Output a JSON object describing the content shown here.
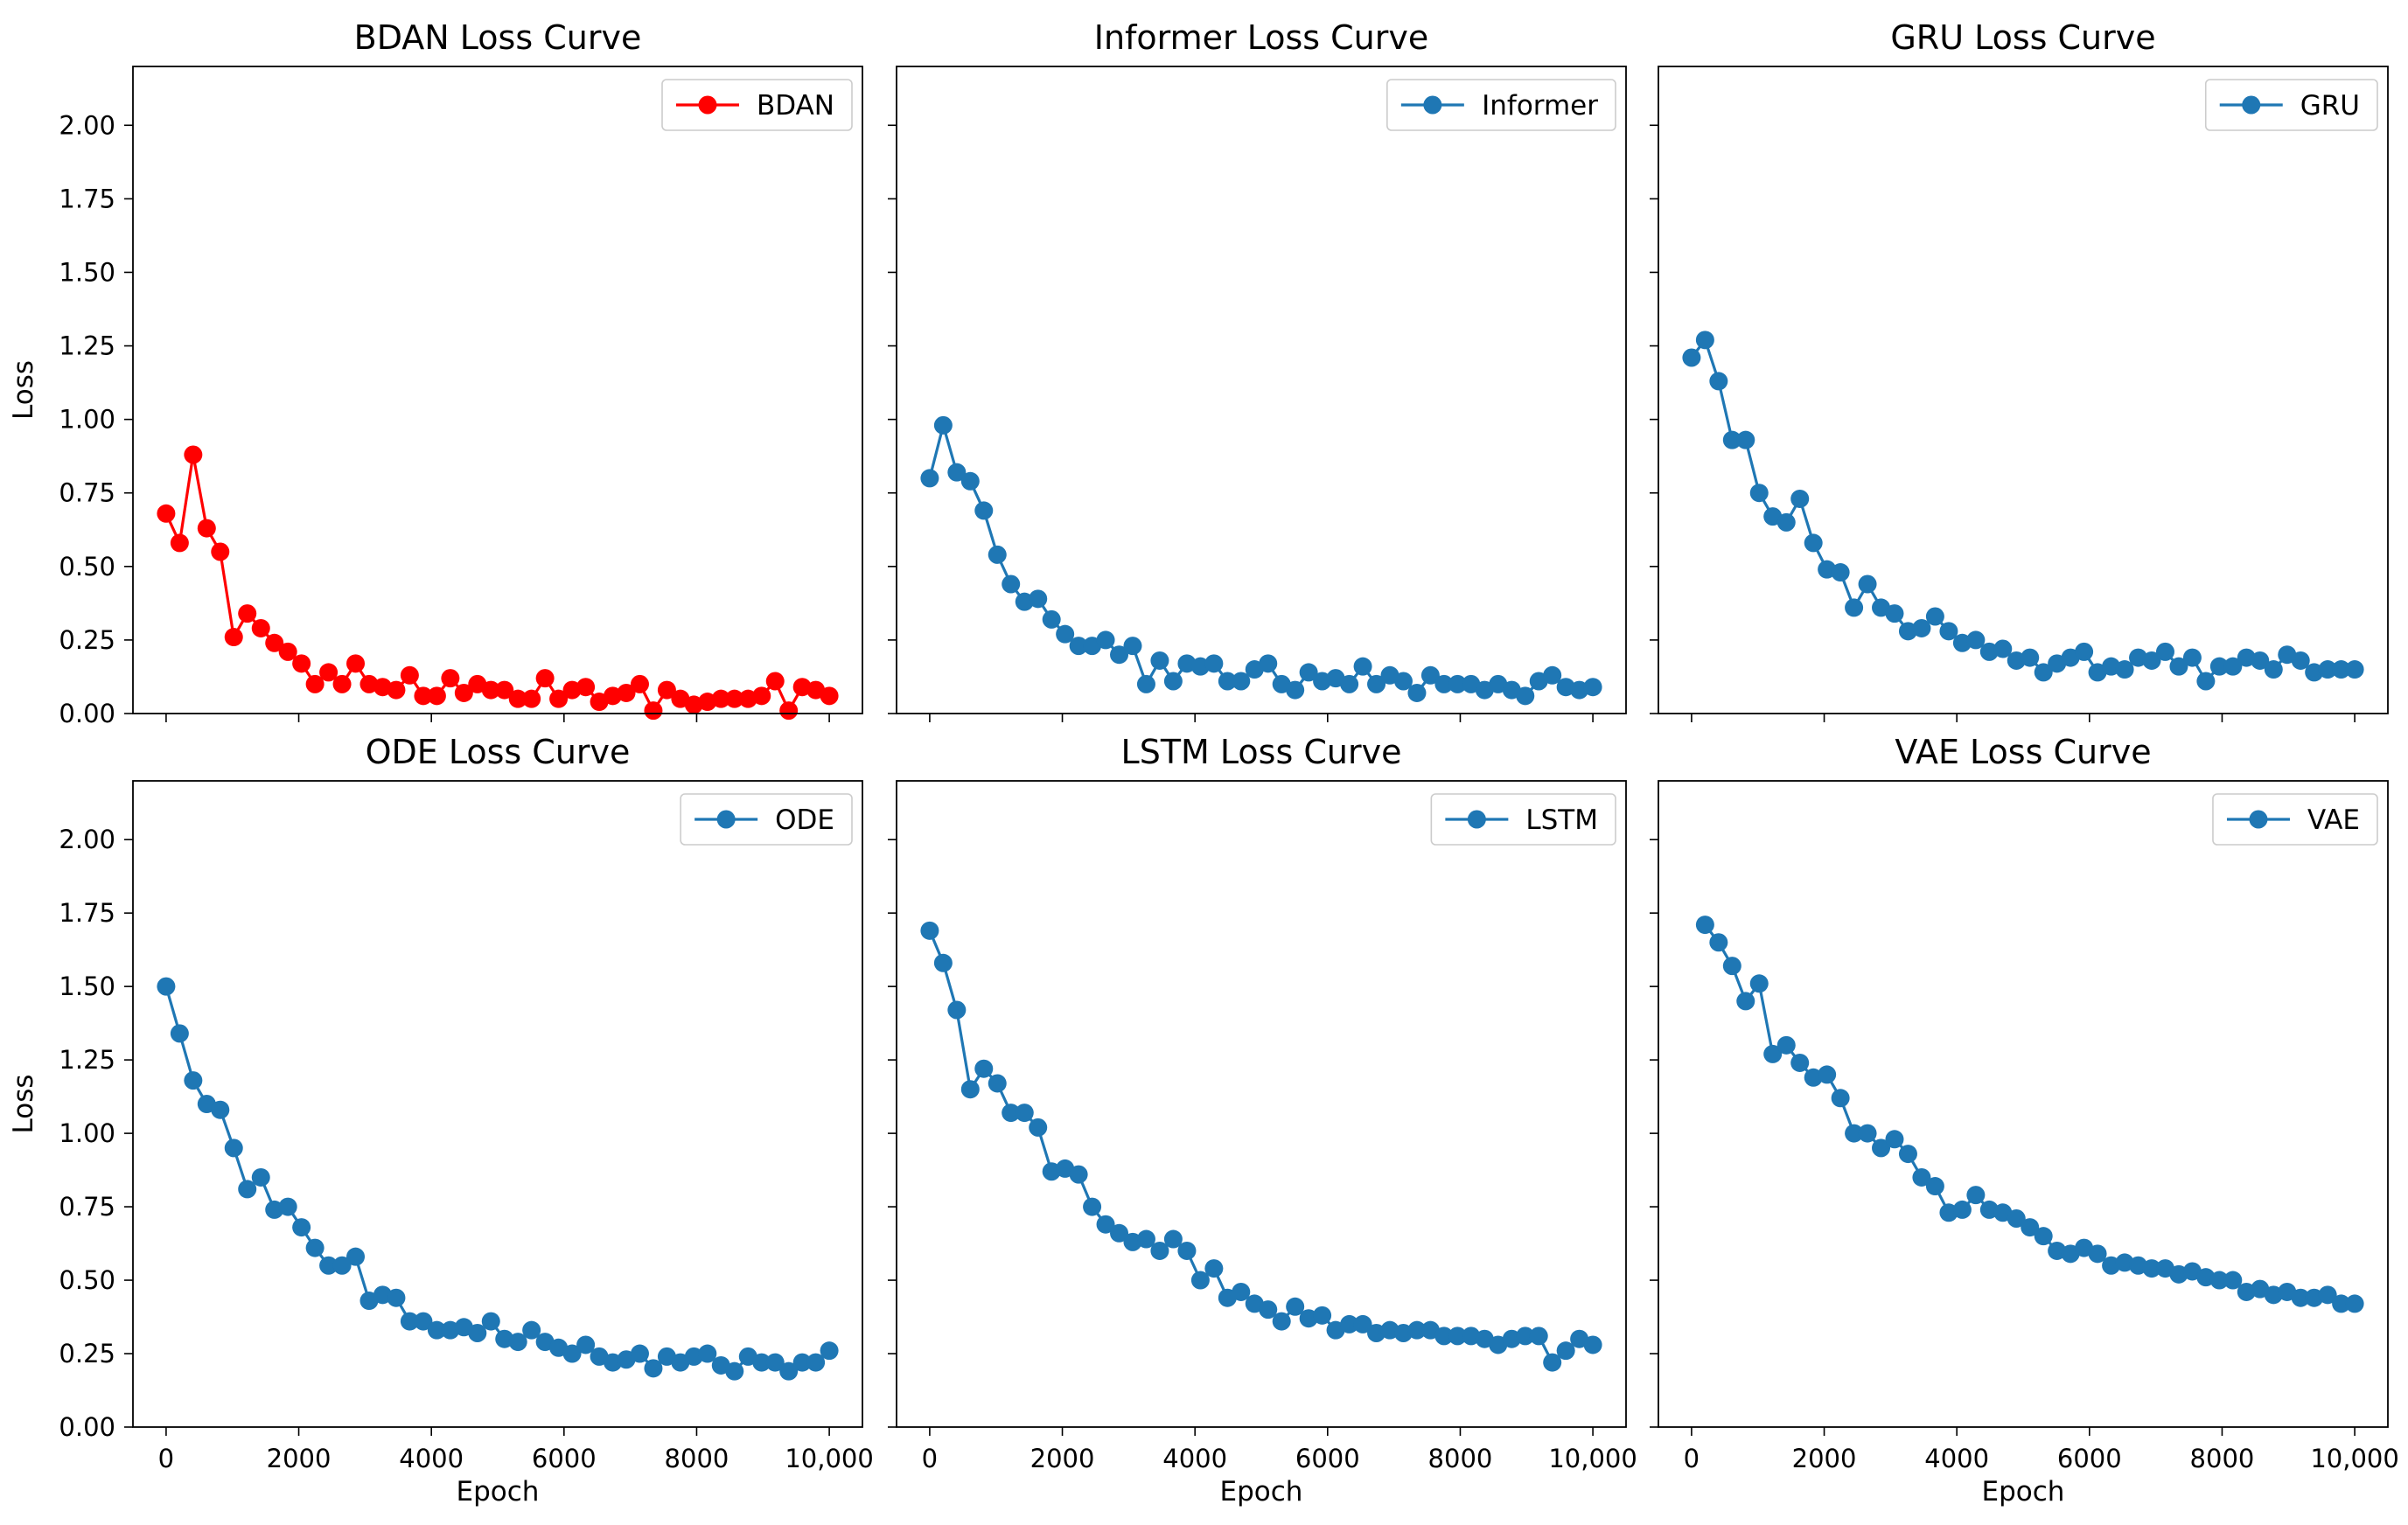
{
  "chart_data": [
    {
      "type": "line",
      "title": "BDAN Loss Curve",
      "xlabel": "",
      "ylabel": "Loss",
      "xlim": [
        -500,
        10500
      ],
      "ylim": [
        0,
        2.2
      ],
      "xticks": [
        0,
        2000,
        4000,
        6000,
        8000,
        10000
      ],
      "xtick_labels": [
        "0",
        "2000",
        "4000",
        "6000",
        "8000",
        "10,000"
      ],
      "yticks": [
        0.0,
        0.25,
        0.5,
        0.75,
        1.0,
        1.25,
        1.5,
        1.75,
        2.0
      ],
      "ytick_labels": [
        "0.00",
        "0.25",
        "0.50",
        "0.75",
        "1.00",
        "1.25",
        "1.50",
        "1.75",
        "2.00"
      ],
      "show_xticklabels": false,
      "show_yticklabels": true,
      "legend": "top-right",
      "series": [
        {
          "name": "BDAN",
          "color": "#ff0000",
          "x": [
            0,
            204,
            408,
            612,
            816,
            1020,
            1224,
            1429,
            1633,
            1837,
            2041,
            2245,
            2449,
            2653,
            2857,
            3061,
            3265,
            3469,
            3673,
            3878,
            4082,
            4286,
            4490,
            4694,
            4898,
            5102,
            5306,
            5510,
            5714,
            5918,
            6122,
            6327,
            6531,
            6735,
            6939,
            7143,
            7347,
            7551,
            7755,
            7959,
            8163,
            8367,
            8571,
            8776,
            8980,
            9184,
            9388,
            9592,
            9796,
            10000
          ],
          "values": [
            0.68,
            0.58,
            0.88,
            0.63,
            0.55,
            0.26,
            0.34,
            0.29,
            0.24,
            0.21,
            0.17,
            0.1,
            0.14,
            0.1,
            0.17,
            0.1,
            0.09,
            0.08,
            0.13,
            0.06,
            0.06,
            0.12,
            0.07,
            0.1,
            0.08,
            0.08,
            0.05,
            0.05,
            0.12,
            0.05,
            0.08,
            0.09,
            0.04,
            0.06,
            0.07,
            0.1,
            0.01,
            0.08,
            0.05,
            0.03,
            0.04,
            0.05,
            0.05,
            0.05,
            0.06,
            0.11,
            0.01,
            0.09,
            0.08,
            0.06
          ]
        }
      ]
    },
    {
      "type": "line",
      "title": "Informer Loss Curve",
      "xlabel": "",
      "ylabel": "",
      "xlim": [
        -500,
        10500
      ],
      "ylim": [
        0,
        2.2
      ],
      "xticks": [
        0,
        2000,
        4000,
        6000,
        8000,
        10000
      ],
      "xtick_labels": [
        "0",
        "2000",
        "4000",
        "6000",
        "8000",
        "10,000"
      ],
      "yticks": [
        0.0,
        0.25,
        0.5,
        0.75,
        1.0,
        1.25,
        1.5,
        1.75,
        2.0
      ],
      "ytick_labels": [
        "0.00",
        "0.25",
        "0.50",
        "0.75",
        "1.00",
        "1.25",
        "1.50",
        "1.75",
        "2.00"
      ],
      "show_xticklabels": false,
      "show_yticklabels": false,
      "legend": "top-right",
      "series": [
        {
          "name": "Informer",
          "color": "#1f77b4",
          "x": [
            0,
            204,
            408,
            612,
            816,
            1020,
            1224,
            1429,
            1633,
            1837,
            2041,
            2245,
            2449,
            2653,
            2857,
            3061,
            3265,
            3469,
            3673,
            3878,
            4082,
            4286,
            4490,
            4694,
            4898,
            5102,
            5306,
            5510,
            5714,
            5918,
            6122,
            6327,
            6531,
            6735,
            6939,
            7143,
            7347,
            7551,
            7755,
            7959,
            8163,
            8367,
            8571,
            8776,
            8980,
            9184,
            9388,
            9592,
            9796,
            10000
          ],
          "values": [
            0.8,
            0.98,
            0.82,
            0.79,
            0.69,
            0.54,
            0.44,
            0.38,
            0.39,
            0.32,
            0.27,
            0.23,
            0.23,
            0.25,
            0.2,
            0.23,
            0.1,
            0.18,
            0.11,
            0.17,
            0.16,
            0.17,
            0.11,
            0.11,
            0.15,
            0.17,
            0.1,
            0.08,
            0.14,
            0.11,
            0.12,
            0.1,
            0.16,
            0.1,
            0.13,
            0.11,
            0.07,
            0.13,
            0.1,
            0.1,
            0.1,
            0.08,
            0.1,
            0.08,
            0.06,
            0.11,
            0.13,
            0.09,
            0.08,
            0.09
          ]
        }
      ]
    },
    {
      "type": "line",
      "title": "GRU Loss Curve",
      "xlabel": "",
      "ylabel": "",
      "xlim": [
        -500,
        10500
      ],
      "ylim": [
        0,
        2.2
      ],
      "xticks": [
        0,
        2000,
        4000,
        6000,
        8000,
        10000
      ],
      "xtick_labels": [
        "0",
        "2000",
        "4000",
        "6000",
        "8000",
        "10,000"
      ],
      "yticks": [
        0.0,
        0.25,
        0.5,
        0.75,
        1.0,
        1.25,
        1.5,
        1.75,
        2.0
      ],
      "ytick_labels": [
        "0.00",
        "0.25",
        "0.50",
        "0.75",
        "1.00",
        "1.25",
        "1.50",
        "1.75",
        "2.00"
      ],
      "show_xticklabels": false,
      "show_yticklabels": false,
      "legend": "top-right",
      "series": [
        {
          "name": "GRU",
          "color": "#1f77b4",
          "x": [
            0,
            204,
            408,
            612,
            816,
            1020,
            1224,
            1429,
            1633,
            1837,
            2041,
            2245,
            2449,
            2653,
            2857,
            3061,
            3265,
            3469,
            3673,
            3878,
            4082,
            4286,
            4490,
            4694,
            4898,
            5102,
            5306,
            5510,
            5714,
            5918,
            6122,
            6327,
            6531,
            6735,
            6939,
            7143,
            7347,
            7551,
            7755,
            7959,
            8163,
            8367,
            8571,
            8776,
            8980,
            9184,
            9388,
            9592,
            9796,
            10000
          ],
          "values": [
            1.21,
            1.27,
            1.13,
            0.93,
            0.93,
            0.75,
            0.67,
            0.65,
            0.73,
            0.58,
            0.49,
            0.48,
            0.36,
            0.44,
            0.36,
            0.34,
            0.28,
            0.29,
            0.33,
            0.28,
            0.24,
            0.25,
            0.21,
            0.22,
            0.18,
            0.19,
            0.14,
            0.17,
            0.19,
            0.21,
            0.14,
            0.16,
            0.15,
            0.19,
            0.18,
            0.21,
            0.16,
            0.19,
            0.11,
            0.16,
            0.16,
            0.19,
            0.18,
            0.15,
            0.2,
            0.18,
            0.14,
            0.15,
            0.15,
            0.15
          ]
        }
      ]
    },
    {
      "type": "line",
      "title": "ODE Loss Curve",
      "xlabel": "Epoch",
      "ylabel": "Loss",
      "xlim": [
        -500,
        10500
      ],
      "ylim": [
        0,
        2.2
      ],
      "xticks": [
        0,
        2000,
        4000,
        6000,
        8000,
        10000
      ],
      "xtick_labels": [
        "0",
        "2000",
        "4000",
        "6000",
        "8000",
        "10,000"
      ],
      "yticks": [
        0.0,
        0.25,
        0.5,
        0.75,
        1.0,
        1.25,
        1.5,
        1.75,
        2.0
      ],
      "ytick_labels": [
        "0.00",
        "0.25",
        "0.50",
        "0.75",
        "1.00",
        "1.25",
        "1.50",
        "1.75",
        "2.00"
      ],
      "show_xticklabels": true,
      "show_yticklabels": true,
      "legend": "top-right",
      "series": [
        {
          "name": "ODE",
          "color": "#1f77b4",
          "x": [
            0,
            204,
            408,
            612,
            816,
            1020,
            1224,
            1429,
            1633,
            1837,
            2041,
            2245,
            2449,
            2653,
            2857,
            3061,
            3265,
            3469,
            3673,
            3878,
            4082,
            4286,
            4490,
            4694,
            4898,
            5102,
            5306,
            5510,
            5714,
            5918,
            6122,
            6327,
            6531,
            6735,
            6939,
            7143,
            7347,
            7551,
            7755,
            7959,
            8163,
            8367,
            8571,
            8776,
            8980,
            9184,
            9388,
            9592,
            9796,
            10000
          ],
          "values": [
            1.5,
            1.34,
            1.18,
            1.1,
            1.08,
            0.95,
            0.81,
            0.85,
            0.74,
            0.75,
            0.68,
            0.61,
            0.55,
            0.55,
            0.58,
            0.43,
            0.45,
            0.44,
            0.36,
            0.36,
            0.33,
            0.33,
            0.34,
            0.32,
            0.36,
            0.3,
            0.29,
            0.33,
            0.29,
            0.27,
            0.25,
            0.28,
            0.24,
            0.22,
            0.23,
            0.25,
            0.2,
            0.24,
            0.22,
            0.24,
            0.25,
            0.21,
            0.19,
            0.24,
            0.22,
            0.22,
            0.19,
            0.22,
            0.22,
            0.26
          ]
        }
      ]
    },
    {
      "type": "line",
      "title": "LSTM Loss Curve",
      "xlabel": "Epoch",
      "ylabel": "",
      "xlim": [
        -500,
        10500
      ],
      "ylim": [
        0,
        2.2
      ],
      "xticks": [
        0,
        2000,
        4000,
        6000,
        8000,
        10000
      ],
      "xtick_labels": [
        "0",
        "2000",
        "4000",
        "6000",
        "8000",
        "10,000"
      ],
      "yticks": [
        0.0,
        0.25,
        0.5,
        0.75,
        1.0,
        1.25,
        1.5,
        1.75,
        2.0
      ],
      "ytick_labels": [
        "0.00",
        "0.25",
        "0.50",
        "0.75",
        "1.00",
        "1.25",
        "1.50",
        "1.75",
        "2.00"
      ],
      "show_xticklabels": true,
      "show_yticklabels": false,
      "legend": "top-right",
      "series": [
        {
          "name": "LSTM",
          "color": "#1f77b4",
          "x": [
            0,
            204,
            408,
            612,
            816,
            1020,
            1224,
            1429,
            1633,
            1837,
            2041,
            2245,
            2449,
            2653,
            2857,
            3061,
            3265,
            3469,
            3673,
            3878,
            4082,
            4286,
            4490,
            4694,
            4898,
            5102,
            5306,
            5510,
            5714,
            5918,
            6122,
            6327,
            6531,
            6735,
            6939,
            7143,
            7347,
            7551,
            7755,
            7959,
            8163,
            8367,
            8571,
            8776,
            8980,
            9184,
            9388,
            9592,
            9796,
            10000
          ],
          "values": [
            1.69,
            1.58,
            1.42,
            1.15,
            1.22,
            1.17,
            1.07,
            1.07,
            1.02,
            0.87,
            0.88,
            0.86,
            0.75,
            0.69,
            0.66,
            0.63,
            0.64,
            0.6,
            0.64,
            0.6,
            0.5,
            0.54,
            0.44,
            0.46,
            0.42,
            0.4,
            0.36,
            0.41,
            0.37,
            0.38,
            0.33,
            0.35,
            0.35,
            0.32,
            0.33,
            0.32,
            0.33,
            0.33,
            0.31,
            0.31,
            0.31,
            0.3,
            0.28,
            0.3,
            0.31,
            0.31,
            0.22,
            0.26,
            0.3,
            0.28
          ]
        }
      ]
    },
    {
      "type": "line",
      "title": "VAE Loss Curve",
      "xlabel": "Epoch",
      "ylabel": "",
      "xlim": [
        -500,
        10500
      ],
      "ylim": [
        0,
        2.2
      ],
      "xticks": [
        0,
        2000,
        4000,
        6000,
        8000,
        10000
      ],
      "xtick_labels": [
        "0",
        "2000",
        "4000",
        "6000",
        "8000",
        "10,000"
      ],
      "yticks": [
        0.0,
        0.25,
        0.5,
        0.75,
        1.0,
        1.25,
        1.5,
        1.75,
        2.0
      ],
      "ytick_labels": [
        "0.00",
        "0.25",
        "0.50",
        "0.75",
        "1.00",
        "1.25",
        "1.50",
        "1.75",
        "2.00"
      ],
      "show_xticklabels": true,
      "show_yticklabels": false,
      "legend": "top-right",
      "series": [
        {
          "name": "VAE",
          "color": "#1f77b4",
          "x": [
            204,
            408,
            612,
            816,
            1020,
            1224,
            1429,
            1633,
            1837,
            2041,
            2245,
            2449,
            2653,
            2857,
            3061,
            3265,
            3469,
            3673,
            3878,
            4082,
            4286,
            4490,
            4694,
            4898,
            5102,
            5306,
            5510,
            5714,
            5918,
            6122,
            6327,
            6531,
            6735,
            6939,
            7143,
            7347,
            7551,
            7755,
            7959,
            8163,
            8367,
            8571,
            8776,
            8980,
            9184,
            9388,
            9592,
            9796,
            10000
          ],
          "values": [
            1.71,
            1.65,
            1.57,
            1.45,
            1.51,
            1.27,
            1.3,
            1.24,
            1.19,
            1.2,
            1.12,
            1.0,
            1.0,
            0.95,
            0.98,
            0.93,
            0.85,
            0.82,
            0.73,
            0.74,
            0.79,
            0.74,
            0.73,
            0.71,
            0.68,
            0.65,
            0.6,
            0.59,
            0.61,
            0.59,
            0.55,
            0.56,
            0.55,
            0.54,
            0.54,
            0.52,
            0.53,
            0.51,
            0.5,
            0.5,
            0.46,
            0.47,
            0.45,
            0.46,
            0.44,
            0.44,
            0.45,
            0.42,
            0.42
          ]
        }
      ]
    }
  ]
}
